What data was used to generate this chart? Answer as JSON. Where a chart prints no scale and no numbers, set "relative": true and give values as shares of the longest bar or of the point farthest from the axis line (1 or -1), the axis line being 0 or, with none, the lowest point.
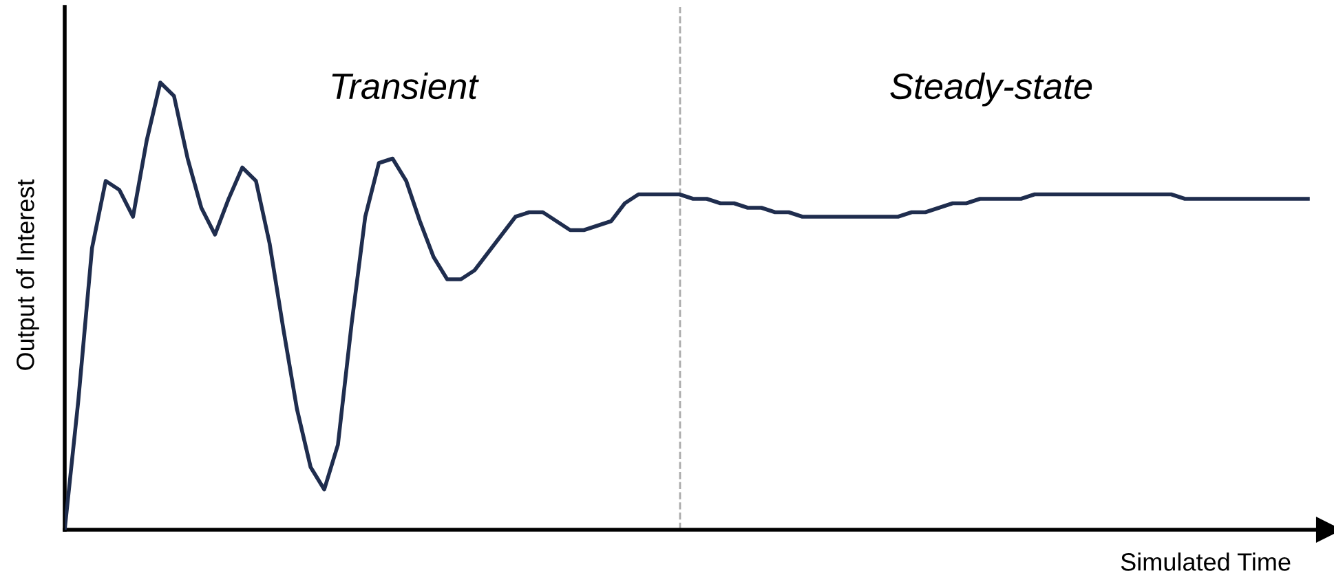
{
  "chart_data": {
    "type": "line",
    "relative": true,
    "xlabel": "Simulated Time",
    "ylabel": "Output of Interest",
    "annotations": [
      "Transient",
      "Steady-state"
    ],
    "categories": [
      null,
      null,
      null,
      null,
      null,
      null,
      null,
      null,
      null,
      null,
      null,
      null,
      null,
      null,
      null,
      null,
      null,
      null,
      null,
      null,
      null,
      null,
      null,
      null,
      null,
      null,
      null,
      null,
      null,
      null,
      null,
      null,
      null,
      null,
      null,
      null,
      null,
      null,
      null,
      null,
      null,
      null,
      null,
      null,
      null,
      null,
      null,
      null,
      null,
      null,
      null,
      null,
      null,
      null,
      null,
      null,
      null,
      null,
      null,
      null,
      null,
      null,
      null,
      null,
      null,
      null,
      null,
      null,
      null,
      null,
      null,
      null,
      null,
      null,
      null,
      null,
      null,
      null,
      null,
      null,
      null,
      null,
      null,
      null,
      null,
      null,
      null,
      null,
      null,
      null,
      null,
      null
    ],
    "series": [
      {
        "color": "#1f2d4e",
        "values": [
          0,
          0.29,
          0.63,
          0.78,
          0.76,
          0.7,
          0.87,
          1.0,
          0.97,
          0.83,
          0.72,
          0.66,
          0.74,
          0.81,
          0.78,
          0.64,
          0.45,
          0.27,
          0.14,
          0.09,
          0.19,
          0.46,
          0.7,
          0.82,
          0.83,
          0.78,
          0.69,
          0.61,
          0.56,
          0.56,
          0.58,
          0.62,
          0.66,
          0.7,
          0.71,
          0.71,
          0.69,
          0.67,
          0.67,
          0.68,
          0.69,
          0.73,
          0.75,
          0.75,
          0.75,
          0.75,
          0.74,
          0.74,
          0.73,
          0.73,
          0.72,
          0.72,
          0.71,
          0.71,
          0.7,
          0.7,
          0.7,
          0.7,
          0.7,
          0.7,
          0.7,
          0.7,
          0.71,
          0.71,
          0.72,
          0.73,
          0.73,
          0.74,
          0.74,
          0.74,
          0.74,
          0.75,
          0.75,
          0.75,
          0.75,
          0.75,
          0.75,
          0.75,
          0.75,
          0.75,
          0.75,
          0.75,
          0.74,
          0.74,
          0.74,
          0.74,
          0.74,
          0.74,
          0.74,
          0.74,
          0.74,
          0.74
        ]
      }
    ],
    "legend": false,
    "marker": "none",
    "line_style": "solid"
  }
}
